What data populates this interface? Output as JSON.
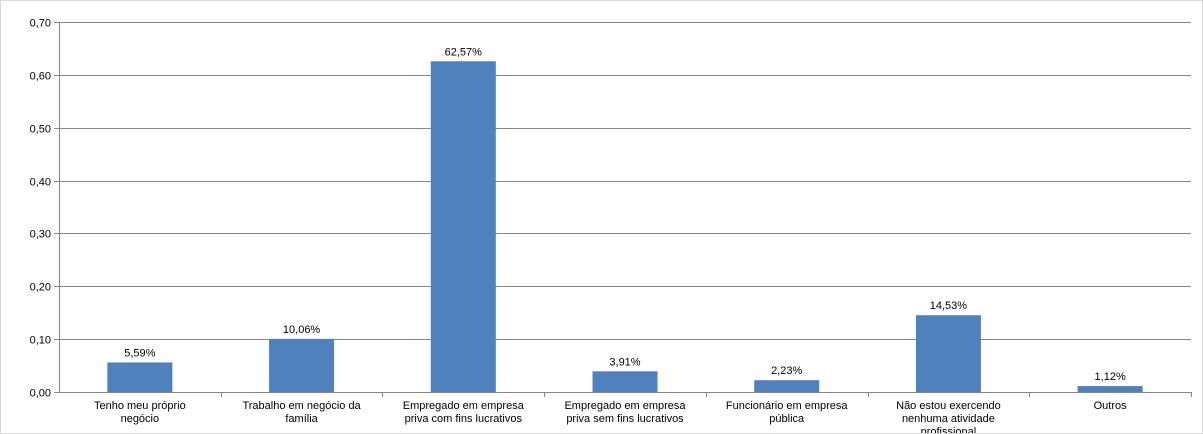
{
  "chart_data": {
    "type": "bar",
    "categories": [
      [
        "Tenho meu próprio",
        "negócio"
      ],
      [
        "Trabalho em negócio da",
        "família"
      ],
      [
        "Empregado em empresa",
        "priva com fins lucrativos"
      ],
      [
        "Empregado em empresa",
        "priva sem fins lucrativos"
      ],
      [
        "Funcionário em empresa",
        "pública"
      ],
      [
        "Não estou exercendo",
        "nenhuma atividade",
        "profissional"
      ],
      [
        "Outros"
      ]
    ],
    "values": [
      0.0559,
      0.1006,
      0.6257,
      0.0391,
      0.0223,
      0.1453,
      0.0112
    ],
    "data_labels": [
      "5,59%",
      "10,06%",
      "62,57%",
      "3,91%",
      "2,23%",
      "14,53%",
      "1,12%"
    ],
    "y_ticks": [
      "0,00",
      "0,10",
      "0,20",
      "0,30",
      "0,40",
      "0,50",
      "0,60",
      "0,70"
    ],
    "ylim": [
      0,
      0.7
    ],
    "y_step": 0.1,
    "grid": true,
    "bar_color": "#4F81BD",
    "grid_color": "#868686",
    "axis_color": "#868686"
  }
}
